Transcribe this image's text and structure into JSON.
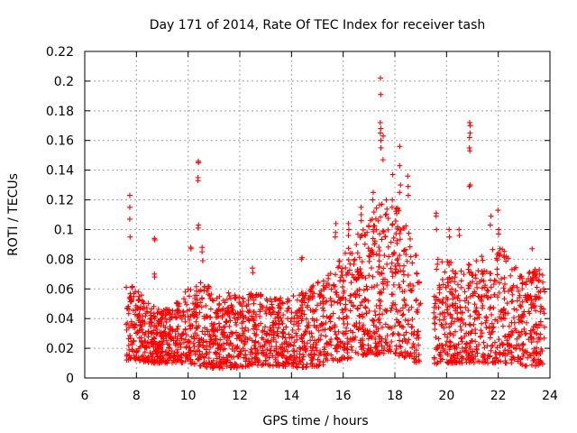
{
  "chart_data": {
    "type": "scatter",
    "title": "Day 171 of 2014, Rate Of TEC Index for receiver tash",
    "xlabel": "GPS time / hours",
    "ylabel": "ROTI / TECUs",
    "xlim": [
      6,
      24
    ],
    "ylim": [
      0,
      0.22
    ],
    "xticks": [
      "6",
      "8",
      "10",
      "12",
      "14",
      "16",
      "18",
      "20",
      "22",
      "24"
    ],
    "yticks": [
      "0",
      "0.02",
      "0.04",
      "0.06",
      "0.08",
      "0.1",
      "0.12",
      "0.14",
      "0.16",
      "0.18",
      "0.2",
      "0.22"
    ],
    "grid": true,
    "marker": "+",
    "color": "#ff0000",
    "data_gap_hours": [
      19.0,
      19.5
    ],
    "series": [
      {
        "name": "ROTI",
        "envelope": {
          "x": [
            7.6,
            8.0,
            8.5,
            9.0,
            9.5,
            10.0,
            10.5,
            11.0,
            11.5,
            12.0,
            12.5,
            13.0,
            13.5,
            14.0,
            14.5,
            15.0,
            15.5,
            16.0,
            16.5,
            17.0,
            17.5,
            18.0,
            18.5,
            19.0,
            19.5,
            20.0,
            20.5,
            21.0,
            21.5,
            22.0,
            22.5,
            23.0,
            23.5,
            23.8
          ],
          "low": [
            0.012,
            0.012,
            0.01,
            0.01,
            0.01,
            0.01,
            0.008,
            0.006,
            0.006,
            0.007,
            0.008,
            0.008,
            0.008,
            0.007,
            0.007,
            0.008,
            0.01,
            0.012,
            0.014,
            0.016,
            0.015,
            0.015,
            0.012,
            0.008,
            0.008,
            0.01,
            0.01,
            0.01,
            0.01,
            0.01,
            0.01,
            0.008,
            0.008,
            0.008
          ],
          "high": [
            0.065,
            0.06,
            0.05,
            0.045,
            0.05,
            0.06,
            0.065,
            0.06,
            0.058,
            0.055,
            0.058,
            0.055,
            0.055,
            0.055,
            0.058,
            0.065,
            0.07,
            0.085,
            0.095,
            0.11,
            0.12,
            0.12,
            0.1,
            0.075,
            0.08,
            0.08,
            0.075,
            0.078,
            0.085,
            0.09,
            0.08,
            0.07,
            0.075,
            0.07
          ]
        },
        "spikes": [
          {
            "x": 7.75,
            "y": [
              0.123,
              0.115,
              0.107,
              0.095
            ]
          },
          {
            "x": 8.7,
            "y": [
              0.094,
              0.093,
              0.07,
              0.068
            ]
          },
          {
            "x": 10.1,
            "y": [
              0.088,
              0.087
            ]
          },
          {
            "x": 10.4,
            "y": [
              0.146,
              0.145,
              0.135,
              0.133,
              0.103,
              0.101
            ]
          },
          {
            "x": 10.55,
            "y": [
              0.088,
              0.085,
              0.079
            ]
          },
          {
            "x": 12.5,
            "y": [
              0.074,
              0.071
            ]
          },
          {
            "x": 14.4,
            "y": [
              0.081,
              0.08
            ]
          },
          {
            "x": 15.7,
            "y": [
              0.104,
              0.098,
              0.095
            ]
          },
          {
            "x": 16.2,
            "y": [
              0.104,
              0.1,
              0.096
            ]
          },
          {
            "x": 16.7,
            "y": [
              0.115,
              0.11,
              0.106
            ]
          },
          {
            "x": 17.15,
            "y": [
              0.125,
              0.12,
              0.1
            ]
          },
          {
            "x": 17.45,
            "y": [
              0.202,
              0.191,
              0.172,
              0.168,
              0.165,
              0.16,
              0.155
            ]
          },
          {
            "x": 17.55,
            "y": [
              0.163,
              0.147
            ]
          },
          {
            "x": 17.9,
            "y": [
              0.137,
              0.12,
              0.115
            ]
          },
          {
            "x": 18.2,
            "y": [
              0.156,
              0.143,
              0.13,
              0.125
            ]
          },
          {
            "x": 18.5,
            "y": [
              0.136,
              0.129,
              0.123
            ]
          },
          {
            "x": 19.6,
            "y": [
              0.111,
              0.109,
              0.1
            ]
          },
          {
            "x": 20.1,
            "y": [
              0.1,
              0.095
            ]
          },
          {
            "x": 20.5,
            "y": [
              0.1,
              0.096
            ]
          },
          {
            "x": 20.9,
            "y": [
              0.172,
              0.17,
              0.165,
              0.162,
              0.155,
              0.153,
              0.13,
              0.129
            ]
          },
          {
            "x": 21.7,
            "y": [
              0.109,
              0.103
            ]
          },
          {
            "x": 22.0,
            "y": [
              0.113,
              0.1,
              0.097
            ]
          },
          {
            "x": 23.3,
            "y": [
              0.087
            ]
          },
          {
            "x": 23.6,
            "y": [
              0.073,
              0.07
            ]
          }
        ]
      }
    ]
  }
}
